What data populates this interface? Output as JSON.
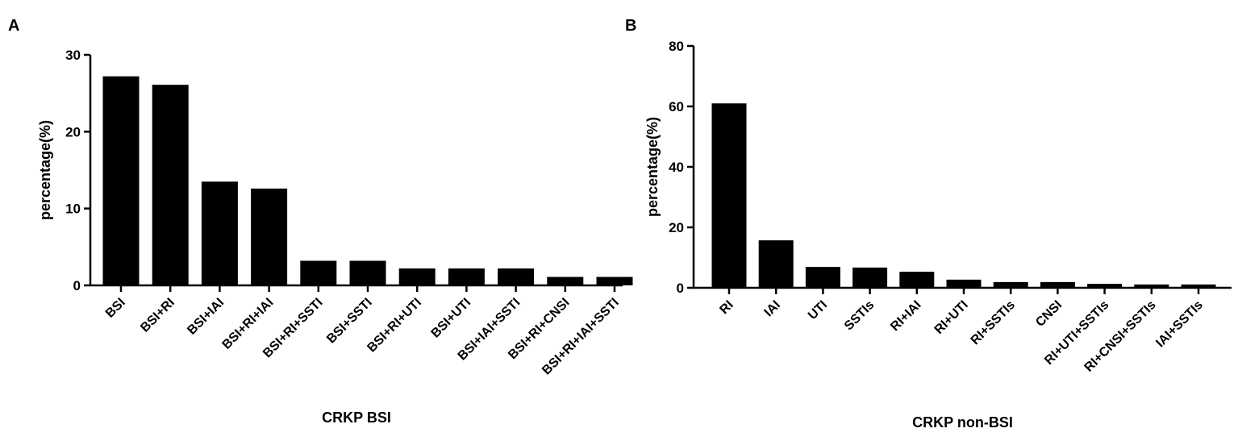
{
  "chart_data": [
    {
      "type": "bar",
      "panel": "A",
      "ylabel": "percentage(%)",
      "xlabel": "CRKP BSI",
      "color": "#000000",
      "categories": [
        "BSI",
        "BSI+RI",
        "BSI+IAI",
        "BSI+RI+IAI",
        "BSI+RI+SSTI",
        "BSI+SSTI",
        "BSI+RI+UTI",
        "BSI+UTI",
        "BSI+IAI+SSTI",
        "BSI+RI+CNSI",
        "BSI+RI+IAI+SSTI"
      ],
      "values": [
        27.2,
        26.1,
        13.5,
        12.6,
        3.2,
        3.2,
        2.2,
        2.2,
        2.2,
        1.1,
        1.1
      ],
      "ylim": [
        0,
        30
      ],
      "yticks": [
        0,
        10,
        20,
        30
      ]
    },
    {
      "type": "bar",
      "panel": "B",
      "ylabel": "percentage(%)",
      "xlabel": "CRKP non-BSI",
      "color": "#000000",
      "categories": [
        "RI",
        "IAI",
        "UTI",
        "SSTIs",
        "RI+IAI",
        "RI+UTI",
        "RI+SSTIs",
        "CNSI",
        "RI+UTI+SSTIs",
        "RI+CNSI+SSTIs",
        "IAI+SSTIs"
      ],
      "values": [
        61,
        15.7,
        6.9,
        6.7,
        5.3,
        2.7,
        1.9,
        1.9,
        1.3,
        1.1,
        1.1
      ],
      "ylim": [
        0,
        80
      ],
      "yticks": [
        0,
        20,
        40,
        60,
        80
      ]
    }
  ]
}
